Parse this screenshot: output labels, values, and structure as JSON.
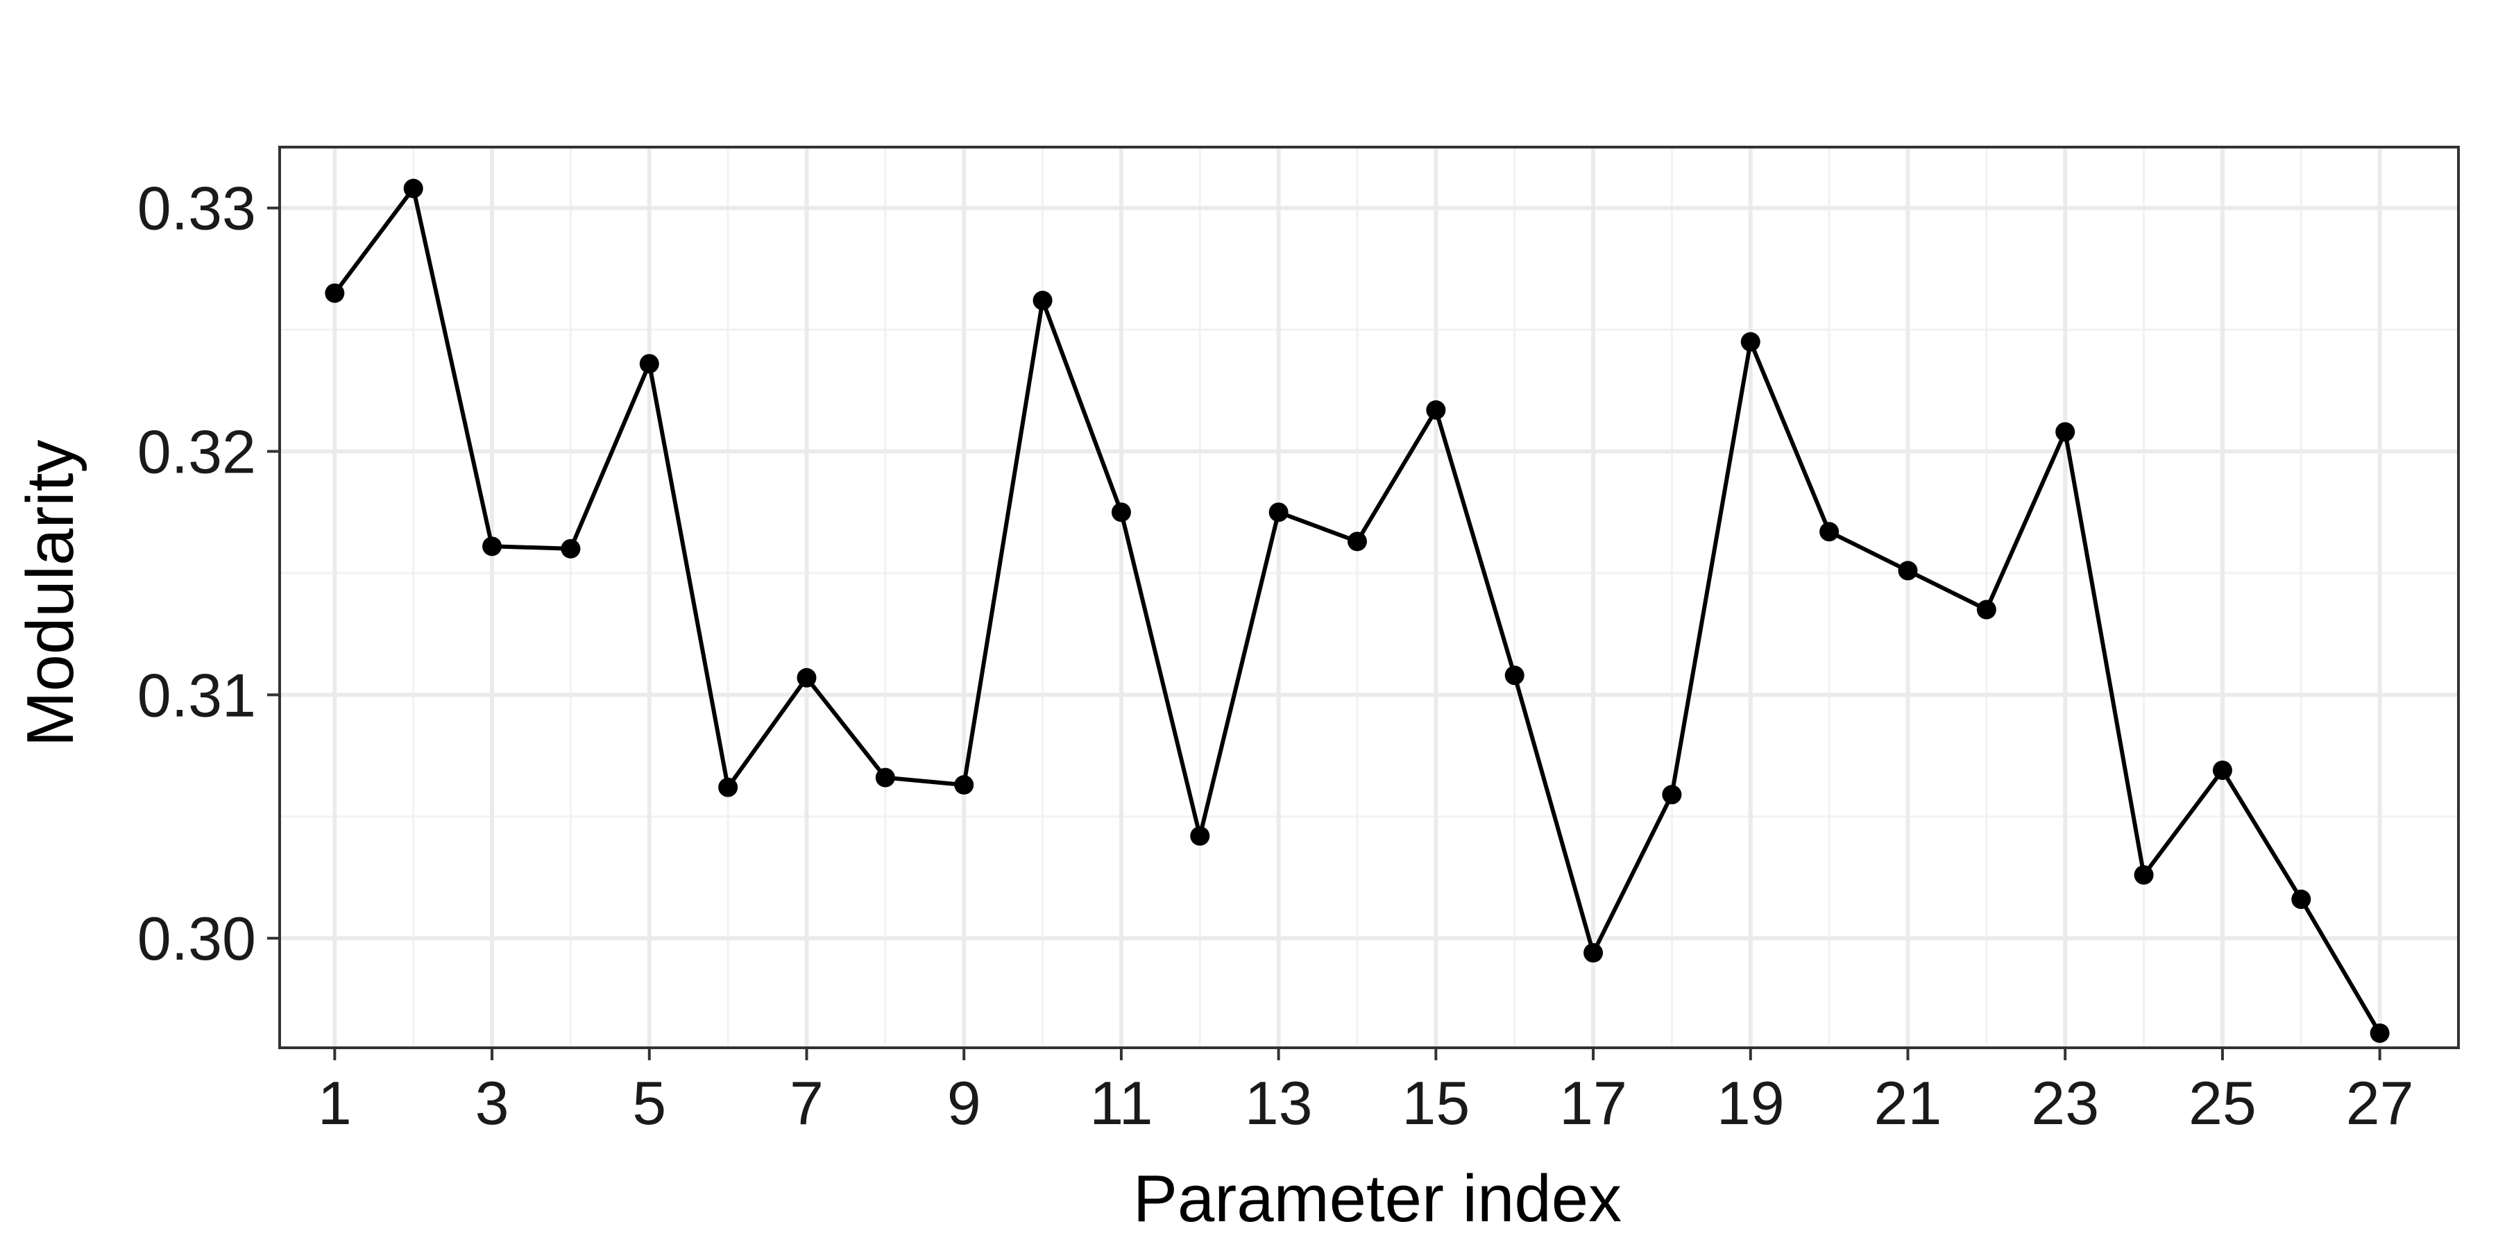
{
  "chart_data": {
    "type": "line",
    "title": "",
    "xlabel": "Parameter index",
    "ylabel": "Modularity",
    "x": [
      1,
      2,
      3,
      4,
      5,
      6,
      7,
      8,
      9,
      10,
      11,
      12,
      13,
      14,
      15,
      16,
      17,
      18,
      19,
      20,
      21,
      22,
      23,
      24,
      25,
      26,
      27
    ],
    "series": [
      {
        "values": [
          0.3265,
          0.3308,
          0.3161,
          0.316,
          0.3236,
          0.3062,
          0.3107,
          0.3066,
          0.3063,
          0.3262,
          0.3175,
          0.3042,
          0.3175,
          0.3163,
          0.3217,
          0.3108,
          0.2994,
          0.3059,
          0.3245,
          0.3167,
          0.3151,
          0.3135,
          0.3208,
          0.3026,
          0.3069,
          0.3016,
          0.2961
        ]
      }
    ],
    "xlim": [
      0.3,
      28
    ],
    "ylim": [
      0.2955,
      0.3325
    ],
    "x_ticks": [
      "1",
      "3",
      "5",
      "7",
      "9",
      "11",
      "13",
      "15",
      "17",
      "19",
      "21",
      "23",
      "25",
      "27"
    ],
    "y_ticks": [
      "0.30",
      "0.31",
      "0.32",
      "0.33"
    ],
    "grid": true,
    "theme": "black-and-white panel with light grey grid",
    "colors": {
      "line": "#000000",
      "points": "#000000",
      "panel_border": "#333333",
      "grid_major": "#ebebeb",
      "grid_minor": "#f2f2f2"
    }
  }
}
